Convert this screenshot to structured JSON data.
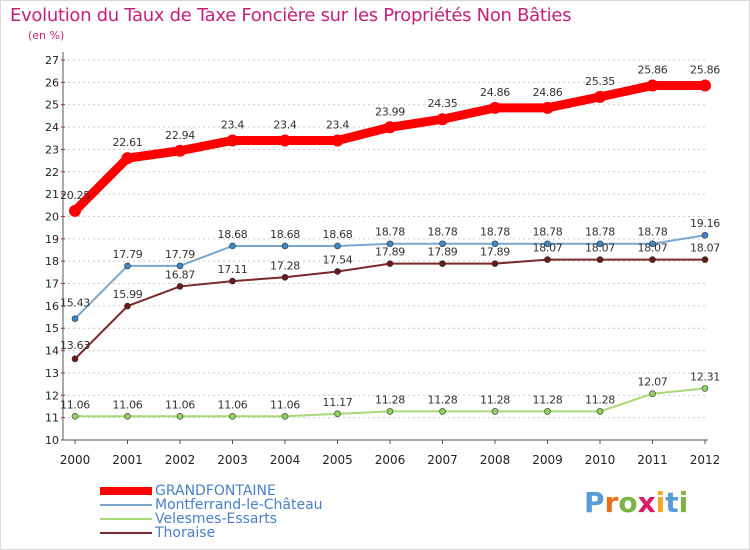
{
  "title": "Evolution du Taux de Taxe Foncière sur les Propriétés Non Bâties",
  "unit_label": "(en %)",
  "logo": {
    "text": "Proxiti",
    "letter_colors": [
      "#5b9bd5",
      "#e8701a",
      "#7cb342",
      "#d81b60",
      "#f5a623",
      "#5b9bd5",
      "#7cb342"
    ]
  },
  "colors": {
    "title": "#c6207a",
    "axis_text": "#222222",
    "grid": "#cccccc",
    "legend_text": "#4a7fc8"
  },
  "chart_data": {
    "type": "line",
    "x": [
      "2000",
      "2001",
      "2002",
      "2003",
      "2004",
      "2005",
      "2006",
      "2007",
      "2008",
      "2009",
      "2010",
      "2011",
      "2012"
    ],
    "ylim": [
      10,
      27
    ],
    "yticks": [
      10,
      11,
      12,
      13,
      14,
      15,
      16,
      17,
      18,
      19,
      20,
      21,
      22,
      23,
      24,
      25,
      26,
      27
    ],
    "grid": "horizontal dashed",
    "legend_position": "bottom-left",
    "series": [
      {
        "name": "GRANDFONTAINE",
        "color": "#ff0000",
        "values": [
          20.25,
          22.61,
          22.94,
          23.4,
          23.4,
          23.4,
          23.99,
          24.35,
          24.86,
          24.86,
          25.35,
          25.86,
          25.86
        ],
        "labels": [
          "20.25",
          "22.61",
          "22.94",
          "23.4",
          "23.4",
          "23.4",
          "23.99",
          "24.35",
          "24.86",
          "24.86",
          "25.35",
          "25.86",
          "25.86"
        ]
      },
      {
        "name": "Montferrand-le-Château",
        "color": "#7aa7cf",
        "values": [
          15.43,
          17.79,
          17.79,
          18.68,
          18.68,
          18.68,
          18.78,
          18.78,
          18.78,
          18.78,
          18.78,
          18.78,
          19.16
        ],
        "labels": [
          "15.43",
          "17.79",
          "17.79",
          "18.68",
          "18.68",
          "18.68",
          "18.78",
          "18.78",
          "18.78",
          "18.78",
          "18.78",
          "18.78",
          "19.16"
        ]
      },
      {
        "name": "Velesmes-Essarts",
        "color": "#a8d878",
        "values": [
          11.06,
          11.06,
          11.06,
          11.06,
          11.06,
          11.17,
          11.28,
          11.28,
          11.28,
          11.28,
          11.28,
          12.07,
          12.31
        ],
        "labels": [
          "11.06",
          "11.06",
          "11.06",
          "11.06",
          "11.06",
          "11.17",
          "11.28",
          "11.28",
          "11.28",
          "11.28",
          "11.28",
          "12.07",
          "12.31"
        ]
      },
      {
        "name": "Thoraise",
        "color": "#7a2a2a",
        "values": [
          13.63,
          15.99,
          16.87,
          17.11,
          17.28,
          17.54,
          17.89,
          17.89,
          17.89,
          18.07,
          18.07,
          18.07,
          18.07
        ],
        "labels": [
          "13.63",
          "15.99",
          "16.87",
          "17.11",
          "17.28",
          "17.54",
          "17.89",
          "17.89",
          "17.89",
          "18.07",
          "18.07",
          "18.07",
          "18.07"
        ]
      }
    ]
  }
}
